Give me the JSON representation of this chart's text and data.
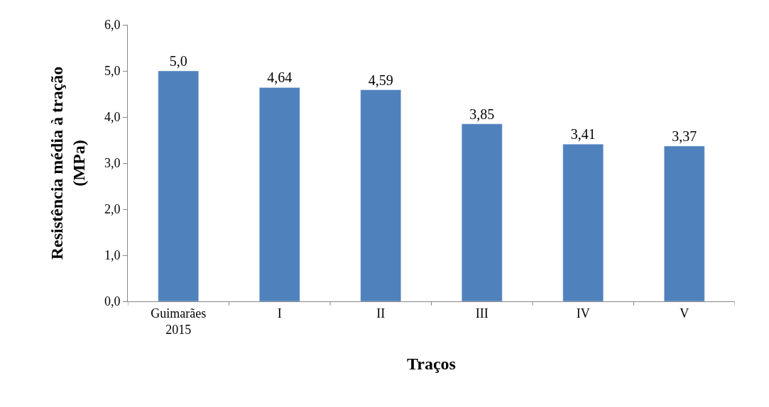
{
  "chart_data": {
    "type": "bar",
    "xlabel": "Traços",
    "ylabel": "Resistência média à tração\n(MPa)",
    "categories": [
      "Guimarães\n2015",
      "I",
      "II",
      "III",
      "IV",
      "V"
    ],
    "values": [
      5.0,
      4.64,
      4.59,
      3.85,
      3.41,
      3.37
    ],
    "value_labels": [
      "5,0",
      "4,64",
      "4,59",
      "3,85",
      "3,41",
      "3,37"
    ],
    "color": "#4f81bd",
    "yticks": [
      {
        "value": 0,
        "label": "0,0"
      },
      {
        "value": 1,
        "label": "1,0"
      },
      {
        "value": 2,
        "label": "2,0"
      },
      {
        "value": 3,
        "label": "3,0"
      },
      {
        "value": 4,
        "label": "4,0"
      },
      {
        "value": 5,
        "label": "5,0"
      },
      {
        "value": 6,
        "label": "6,0"
      }
    ],
    "ylim": [
      0,
      6
    ]
  }
}
